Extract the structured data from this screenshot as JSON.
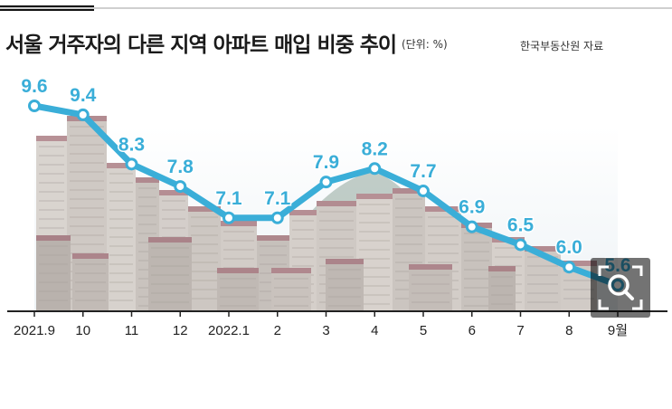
{
  "header": {
    "title": "서울 거주자의 다른 지역 아파트 매입 비중 추이",
    "unit": "(단위: %)",
    "source": "한국부동산원 자료"
  },
  "chart_data": {
    "type": "line",
    "title": "서울 거주자의 다른 지역 아파트 매입 비중 추이",
    "unit": "%",
    "categories": [
      "2021.9",
      "10",
      "11",
      "12",
      "2022.1",
      "2",
      "3",
      "4",
      "5",
      "6",
      "7",
      "8",
      "9월"
    ],
    "series": [
      {
        "values": [
          9.6,
          9.4,
          8.3,
          7.8,
          7.1,
          7.1,
          7.9,
          8.2,
          7.7,
          6.9,
          6.5,
          6.0,
          5.6
        ]
      }
    ],
    "value_labels": [
      "9.6",
      "9.4",
      "8.3",
      "7.8",
      "7.1",
      "7.1",
      "7.9",
      "8.2",
      "7.7",
      "6.9",
      "6.5",
      "6.0",
      "5.6"
    ],
    "ylim": [
      5.0,
      10.0
    ],
    "grid": false,
    "legend": "none",
    "colors": {
      "line": "#3aaed8",
      "marker_fill": "#ffffff",
      "label": "#3aaed8",
      "axis": "#222222"
    }
  },
  "controls": {
    "zoom_icon": "zoom-magnifier-icon"
  }
}
